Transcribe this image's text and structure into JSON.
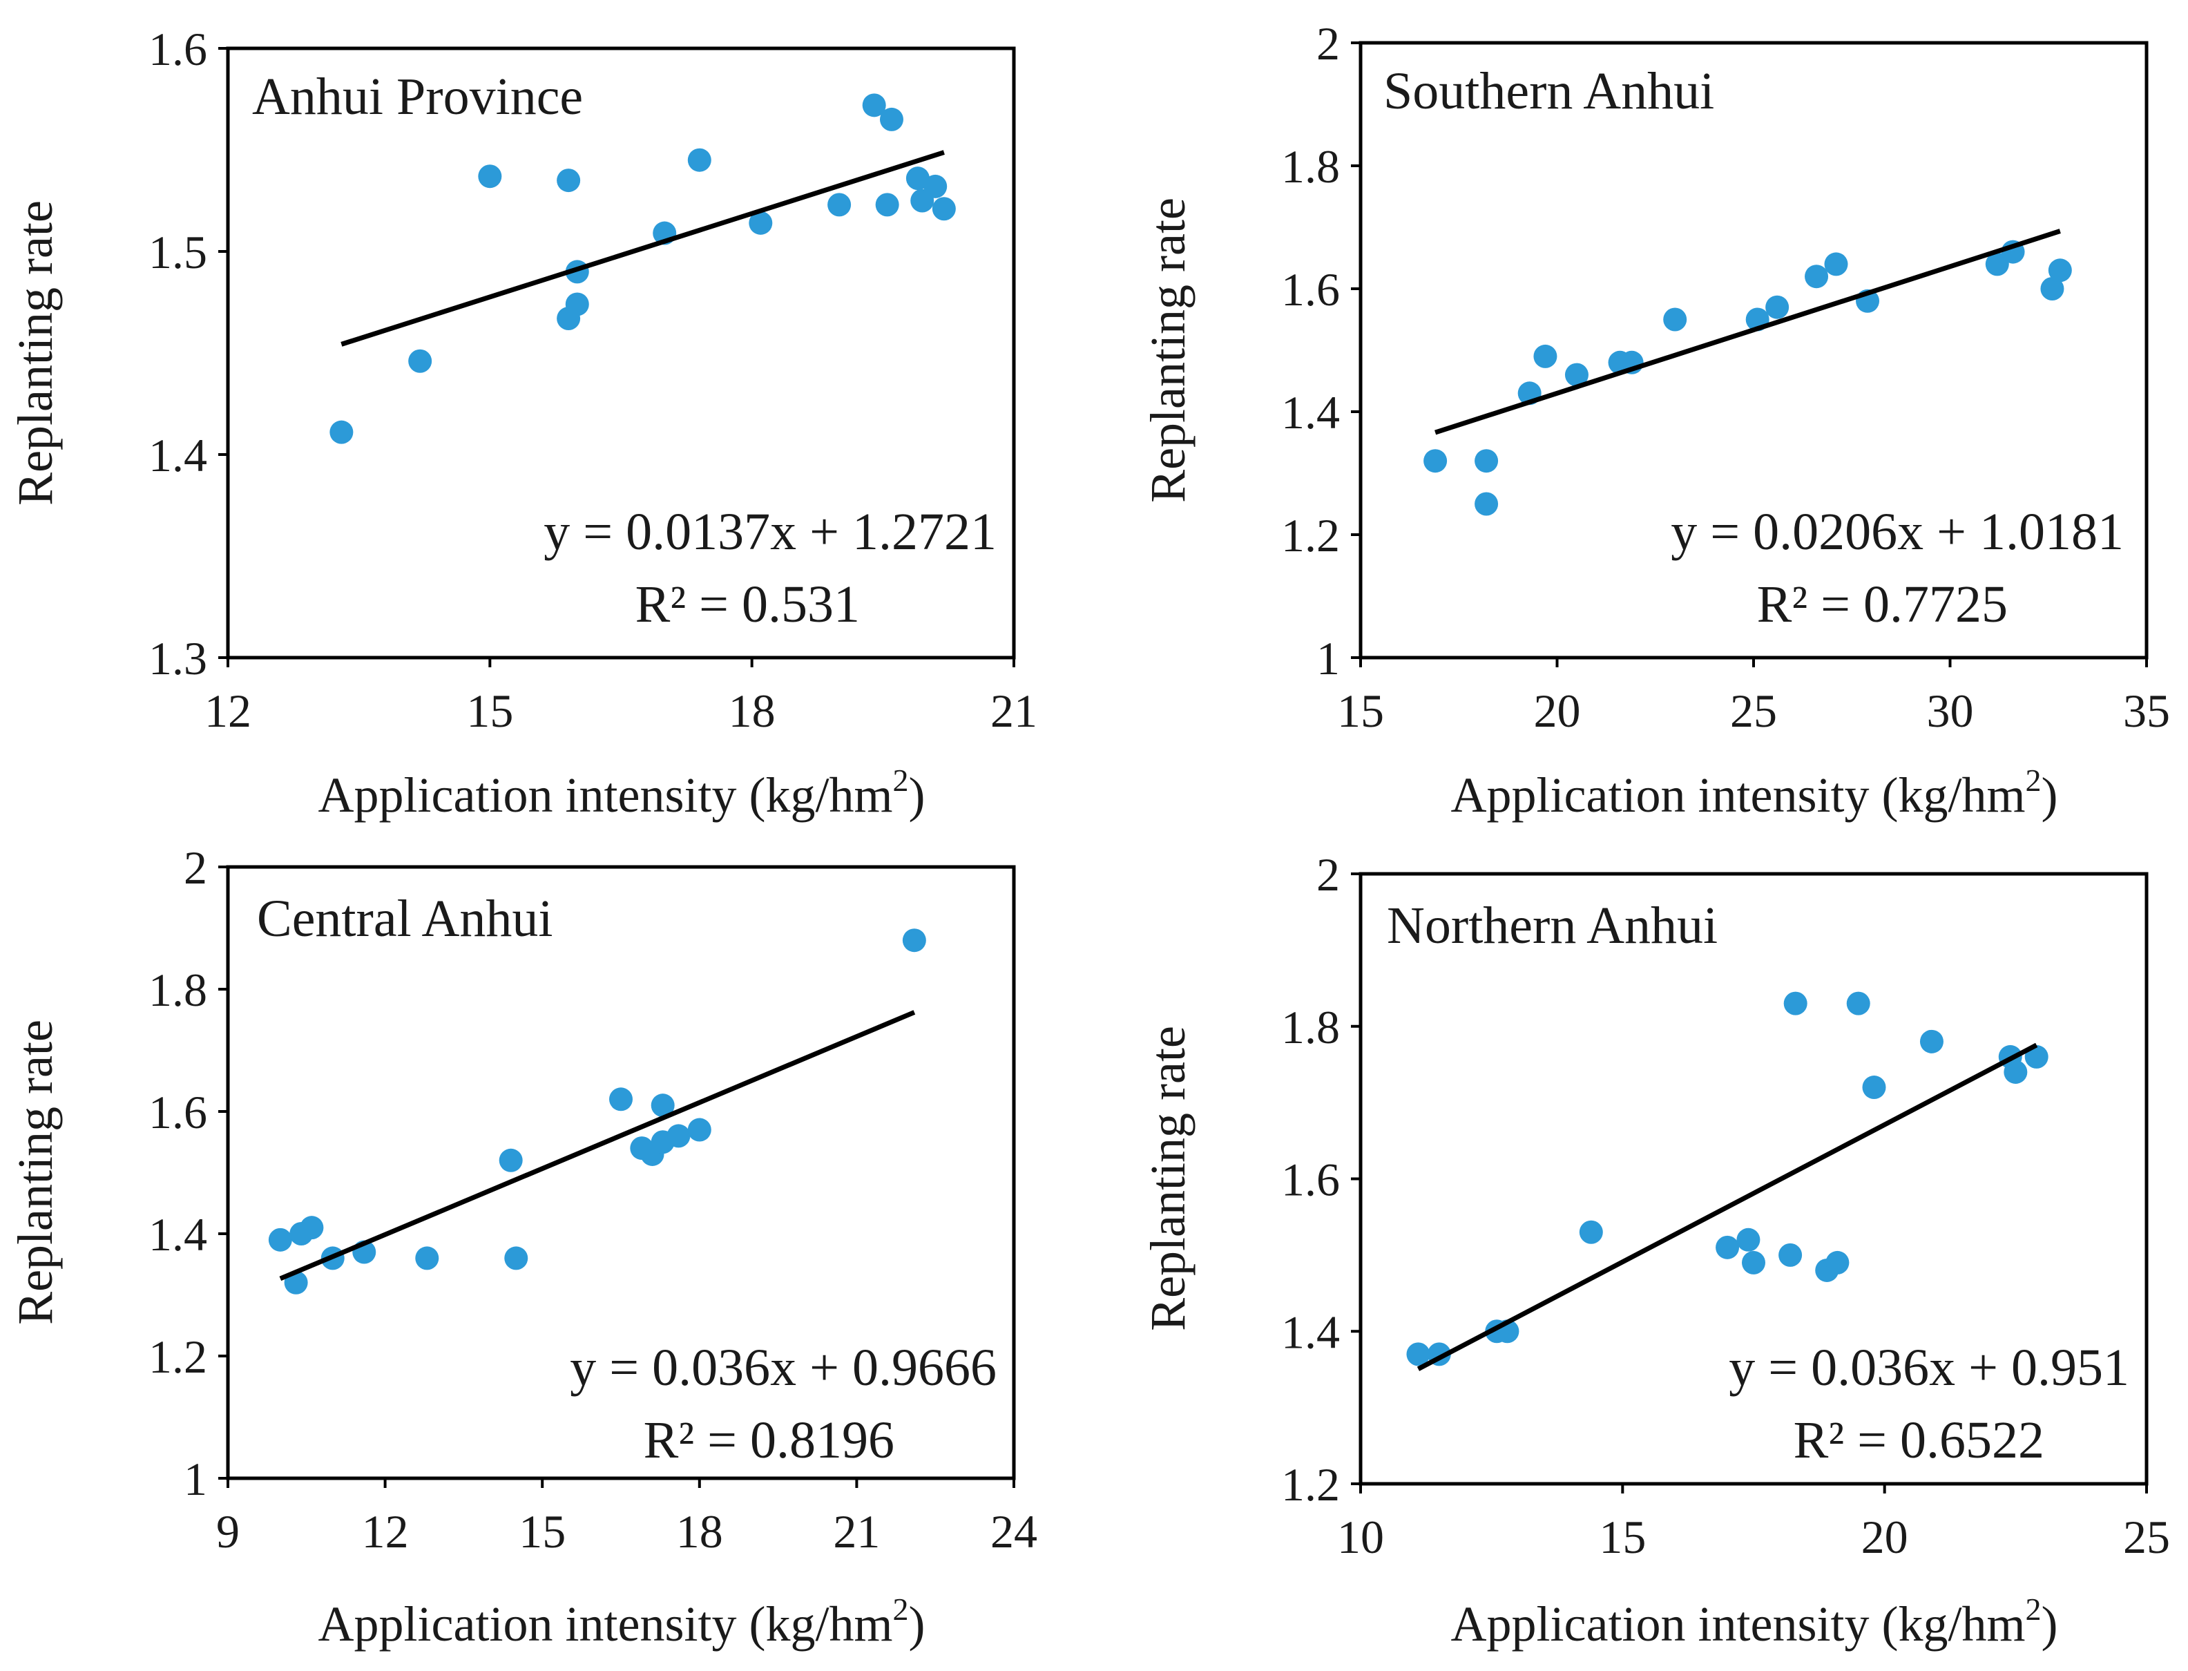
{
  "figure": {
    "ylabel": "Replanting rate",
    "xlabel_main": "Application  intensity  (kg/hm",
    "xlabel_sup": "2",
    "xlabel_tail": ")"
  },
  "colors": {
    "point": "#2C9AD8",
    "line": "#000000",
    "axis": "#000000"
  },
  "chart_data": [
    {
      "type": "scatter",
      "title": "Anhui Province",
      "xlabel": "Application  intensity  (kg/hm²)",
      "ylabel": "Replanting rate",
      "xlim": [
        12,
        21
      ],
      "ylim": [
        1.3,
        1.6
      ],
      "xticks": [
        12,
        15,
        18,
        21
      ],
      "xtick_labels": [
        "12",
        "15",
        "18",
        "21"
      ],
      "yticks": [
        1.3,
        1.4,
        1.5,
        1.6
      ],
      "ytick_labels": [
        "1.3",
        "1.4",
        "1.5",
        "1.6"
      ],
      "points": [
        {
          "x": 13.3,
          "y": 1.411
        },
        {
          "x": 14.2,
          "y": 1.446
        },
        {
          "x": 15.0,
          "y": 1.537
        },
        {
          "x": 15.9,
          "y": 1.535
        },
        {
          "x": 15.9,
          "y": 1.467
        },
        {
          "x": 16.0,
          "y": 1.474
        },
        {
          "x": 16.0,
          "y": 1.49
        },
        {
          "x": 17.0,
          "y": 1.509
        },
        {
          "x": 17.4,
          "y": 1.545
        },
        {
          "x": 18.1,
          "y": 1.514
        },
        {
          "x": 19.0,
          "y": 1.523
        },
        {
          "x": 19.4,
          "y": 1.572
        },
        {
          "x": 19.55,
          "y": 1.523
        },
        {
          "x": 19.6,
          "y": 1.565
        },
        {
          "x": 19.9,
          "y": 1.536
        },
        {
          "x": 19.95,
          "y": 1.525
        },
        {
          "x": 20.1,
          "y": 1.532
        },
        {
          "x": 20.2,
          "y": 1.521
        }
      ],
      "trendline": {
        "x": [
          13.3,
          20.2
        ],
        "y": [
          1.4543,
          1.5488
        ]
      },
      "equation": "y = 0.0137x + 1.2721",
      "r2": "R² = 0.531"
    },
    {
      "type": "scatter",
      "title": "Southern Anhui",
      "xlabel": "Application  intensity  (kg/hm²)",
      "ylabel": "Replanting rate",
      "xlim": [
        15,
        35
      ],
      "ylim": [
        1,
        2
      ],
      "xticks": [
        15,
        20,
        25,
        30,
        35
      ],
      "xtick_labels": [
        "15",
        "20",
        "25",
        "30",
        "35"
      ],
      "yticks": [
        1,
        1.2,
        1.4,
        1.6,
        1.8,
        2
      ],
      "ytick_labels": [
        "1",
        "1.2",
        "1.4",
        "1.6",
        "1.8",
        "2"
      ],
      "points": [
        {
          "x": 16.9,
          "y": 1.32
        },
        {
          "x": 18.2,
          "y": 1.32
        },
        {
          "x": 18.2,
          "y": 1.25
        },
        {
          "x": 19.3,
          "y": 1.43
        },
        {
          "x": 19.7,
          "y": 1.49
        },
        {
          "x": 20.5,
          "y": 1.46
        },
        {
          "x": 21.6,
          "y": 1.48
        },
        {
          "x": 21.9,
          "y": 1.48
        },
        {
          "x": 23.0,
          "y": 1.55
        },
        {
          "x": 25.1,
          "y": 1.55
        },
        {
          "x": 25.6,
          "y": 1.57
        },
        {
          "x": 26.6,
          "y": 1.62
        },
        {
          "x": 27.1,
          "y": 1.64
        },
        {
          "x": 27.9,
          "y": 1.58
        },
        {
          "x": 31.2,
          "y": 1.64
        },
        {
          "x": 31.6,
          "y": 1.66
        },
        {
          "x": 32.6,
          "y": 1.6
        },
        {
          "x": 32.8,
          "y": 1.63
        }
      ],
      "trendline": {
        "x": [
          16.9,
          32.8
        ],
        "y": [
          1.3662,
          1.6938
        ]
      },
      "equation": "y = 0.0206x + 1.0181",
      "r2": "R² = 0.7725"
    },
    {
      "type": "scatter",
      "title": "Central Anhui",
      "xlabel": "Application  intensity  (kg/hm²)",
      "ylabel": "Replanting rate",
      "xlim": [
        9,
        24
      ],
      "ylim": [
        1,
        2
      ],
      "xticks": [
        9,
        12,
        15,
        18,
        21,
        24
      ],
      "xtick_labels": [
        "9",
        "12",
        "15",
        "18",
        "21",
        "24"
      ],
      "yticks": [
        1,
        1.2,
        1.4,
        1.6,
        1.8,
        2
      ],
      "ytick_labels": [
        "1",
        "1.2",
        "1.4",
        "1.6",
        "1.8",
        "2"
      ],
      "points": [
        {
          "x": 10.0,
          "y": 1.39
        },
        {
          "x": 10.3,
          "y": 1.32
        },
        {
          "x": 10.4,
          "y": 1.4
        },
        {
          "x": 10.6,
          "y": 1.41
        },
        {
          "x": 11.0,
          "y": 1.36
        },
        {
          "x": 11.6,
          "y": 1.37
        },
        {
          "x": 12.8,
          "y": 1.36
        },
        {
          "x": 14.4,
          "y": 1.52
        },
        {
          "x": 14.5,
          "y": 1.36
        },
        {
          "x": 16.5,
          "y": 1.62
        },
        {
          "x": 16.9,
          "y": 1.54
        },
        {
          "x": 17.1,
          "y": 1.53
        },
        {
          "x": 17.3,
          "y": 1.61
        },
        {
          "x": 17.3,
          "y": 1.55
        },
        {
          "x": 17.6,
          "y": 1.56
        },
        {
          "x": 18.0,
          "y": 1.57
        },
        {
          "x": 22.1,
          "y": 1.88
        }
      ],
      "trendline": {
        "x": [
          10.0,
          22.1
        ],
        "y": [
          1.3266,
          1.7622
        ]
      },
      "equation": "y = 0.036x + 0.9666",
      "r2": "R² = 0.8196"
    },
    {
      "type": "scatter",
      "title": "Northern Anhui",
      "xlabel": "Application  intensity  (kg/hm²)",
      "ylabel": "Replanting rate",
      "xlim": [
        10,
        25
      ],
      "ylim": [
        1.2,
        2
      ],
      "xticks": [
        10,
        15,
        20,
        25
      ],
      "xtick_labels": [
        "10",
        "15",
        "20",
        "25"
      ],
      "yticks": [
        1.2,
        1.4,
        1.6,
        1.8,
        2
      ],
      "ytick_labels": [
        "1.2",
        "1.4",
        "1.6",
        "1.8",
        "2"
      ],
      "points": [
        {
          "x": 11.1,
          "y": 1.37
        },
        {
          "x": 11.5,
          "y": 1.37
        },
        {
          "x": 12.6,
          "y": 1.4
        },
        {
          "x": 12.8,
          "y": 1.4
        },
        {
          "x": 14.4,
          "y": 1.53
        },
        {
          "x": 17.0,
          "y": 1.51
        },
        {
          "x": 17.4,
          "y": 1.52
        },
        {
          "x": 17.5,
          "y": 1.49
        },
        {
          "x": 18.2,
          "y": 1.5
        },
        {
          "x": 18.3,
          "y": 1.83
        },
        {
          "x": 18.9,
          "y": 1.48
        },
        {
          "x": 19.1,
          "y": 1.49
        },
        {
          "x": 19.5,
          "y": 1.83
        },
        {
          "x": 19.8,
          "y": 1.72
        },
        {
          "x": 20.9,
          "y": 1.78
        },
        {
          "x": 22.4,
          "y": 1.76
        },
        {
          "x": 22.5,
          "y": 1.74
        },
        {
          "x": 22.9,
          "y": 1.76
        }
      ],
      "trendline": {
        "x": [
          11.1,
          22.9
        ],
        "y": [
          1.3506,
          1.7754
        ]
      },
      "equation": "y = 0.036x + 0.951",
      "r2": "R² = 0.6522"
    }
  ]
}
